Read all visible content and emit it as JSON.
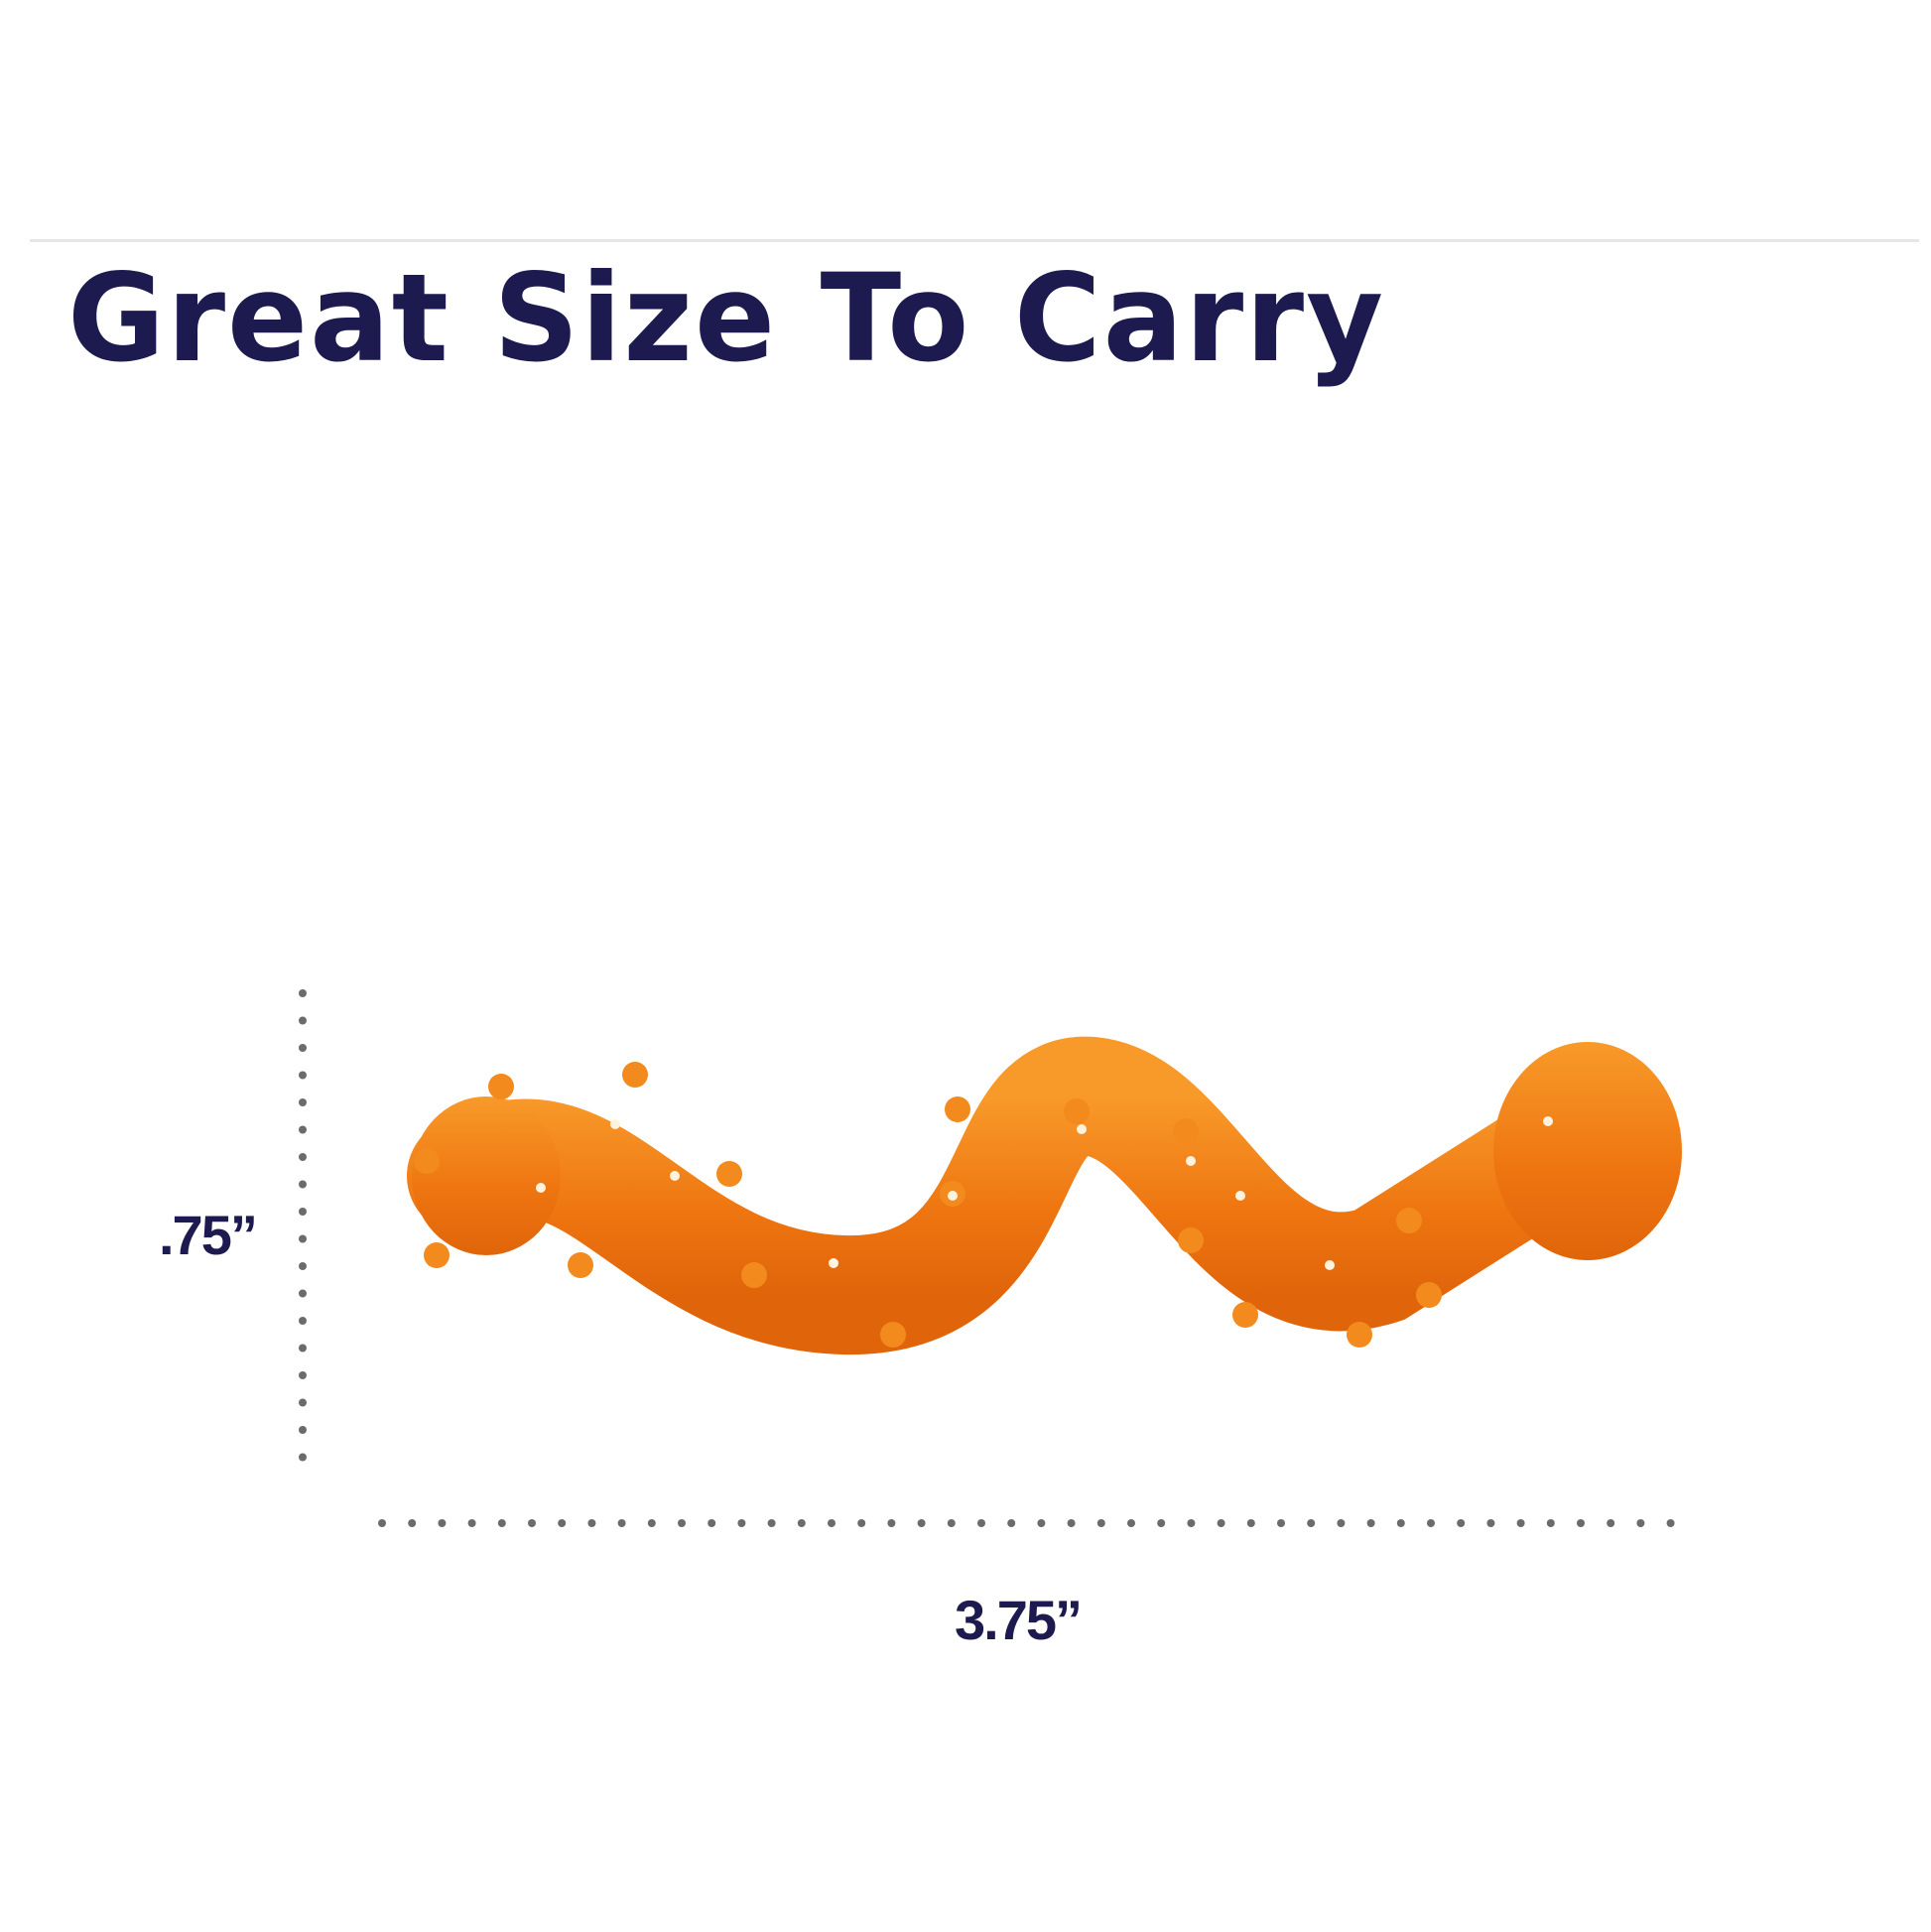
{
  "title": "Great Size To Carry",
  "dimensions": {
    "height_label": ".75”",
    "width_label": "3.75”"
  },
  "product_image": {
    "description_icon": "orange-worm-toy",
    "color": "#f07a10"
  },
  "colors": {
    "heading": "#1d1a4f",
    "dotted_guides": "#6b6b6b"
  }
}
